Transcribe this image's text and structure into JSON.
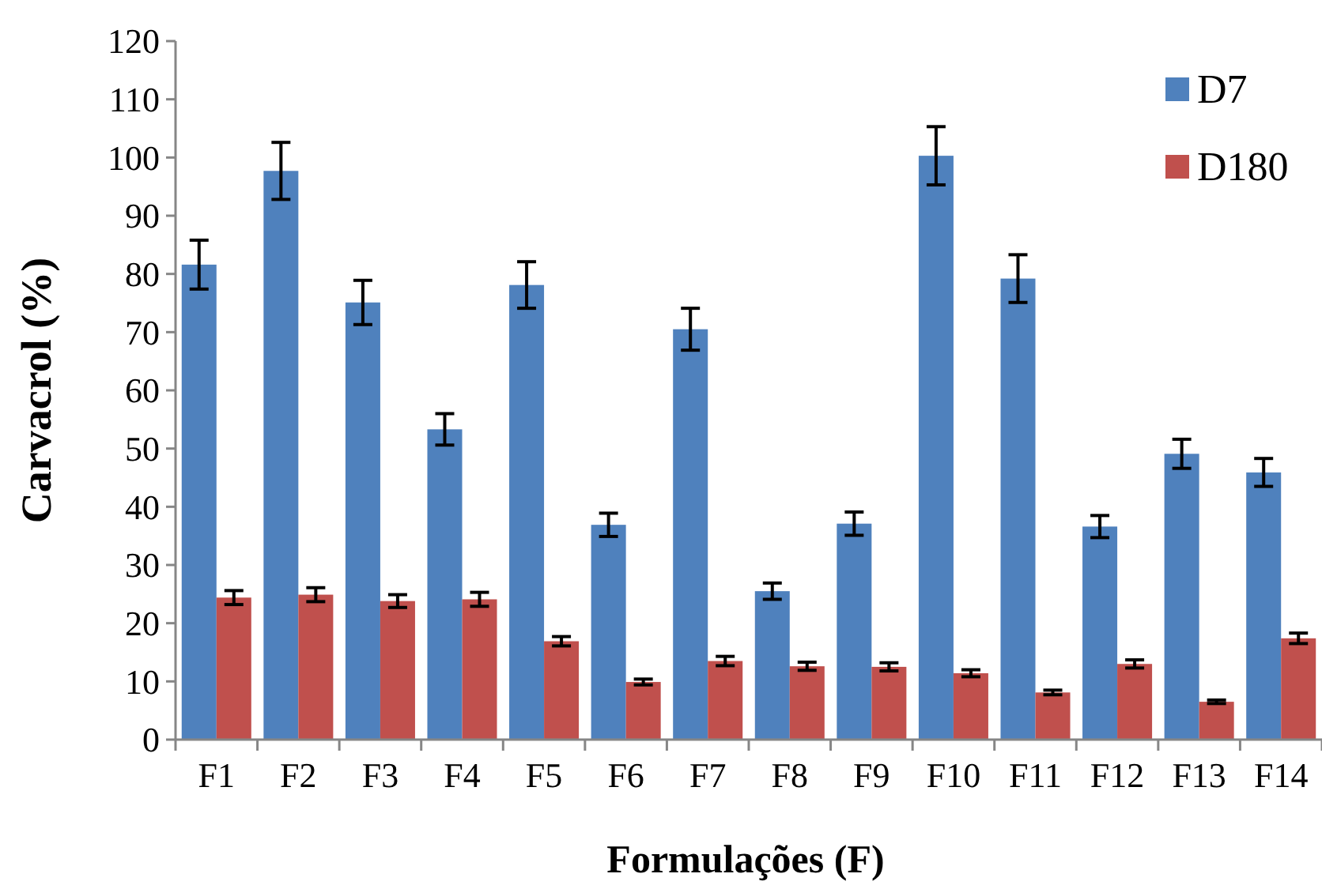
{
  "chart_data": {
    "type": "bar",
    "xlabel": "Formulações (F)",
    "ylabel": "Carvacrol (%)",
    "categories": [
      "F1",
      "F2",
      "F3",
      "F4",
      "F5",
      "F6",
      "F7",
      "F8",
      "F9",
      "F10",
      "F11",
      "F12",
      "F13",
      "F14"
    ],
    "series": [
      {
        "name": "D7",
        "color": "#4f81bd",
        "values": [
          81.6,
          97.7,
          75.1,
          53.3,
          78.1,
          36.9,
          70.5,
          25.5,
          37.1,
          100.3,
          79.2,
          36.6,
          49.1,
          45.9
        ],
        "errors": [
          4.2,
          4.9,
          3.8,
          2.7,
          4,
          2,
          3.6,
          1.4,
          2,
          5,
          4.1,
          1.9,
          2.5,
          2.4
        ]
      },
      {
        "name": "D180",
        "color": "#c0504d",
        "values": [
          24.4,
          24.9,
          23.8,
          24.1,
          16.9,
          9.9,
          13.5,
          12.6,
          12.5,
          11.4,
          8.1,
          13,
          6.5,
          17.4
        ],
        "errors": [
          1.2,
          1.2,
          1.1,
          1.2,
          0.8,
          0.5,
          0.8,
          0.7,
          0.7,
          0.6,
          0.4,
          0.7,
          0.3,
          0.9
        ]
      }
    ],
    "ylim": [
      0,
      120
    ],
    "yticks": [
      0,
      10,
      20,
      30,
      40,
      50,
      60,
      70,
      80,
      90,
      100,
      110,
      120
    ],
    "grid": false,
    "legend": "top right"
  }
}
